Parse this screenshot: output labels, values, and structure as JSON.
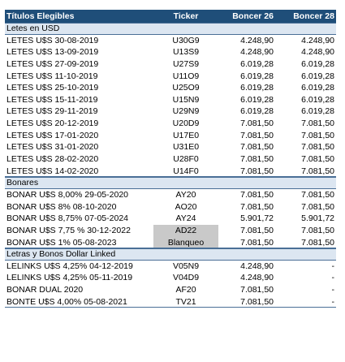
{
  "header": {
    "col1": "Títulos Elegibles",
    "col2": "Ticker",
    "col3": "Boncer 26",
    "col4": "Boncer 28"
  },
  "sections": [
    {
      "title": "Letes en USD",
      "rows": [
        {
          "name": "LETES U$S 30-08-2019",
          "ticker": "U30G9",
          "b26": "4.248,90",
          "b28": "4.248,90",
          "hl": false
        },
        {
          "name": "LETES U$S 13-09-2019",
          "ticker": "U13S9",
          "b26": "4.248,90",
          "b28": "4.248,90",
          "hl": false
        },
        {
          "name": "LETES U$S 27-09-2019",
          "ticker": "U27S9",
          "b26": "6.019,28",
          "b28": "6.019,28",
          "hl": false
        },
        {
          "name": "LETES U$S 11-10-2019",
          "ticker": "U11O9",
          "b26": "6.019,28",
          "b28": "6.019,28",
          "hl": false
        },
        {
          "name": "LETES U$S 25-10-2019",
          "ticker": "U25O9",
          "b26": "6.019,28",
          "b28": "6.019,28",
          "hl": false
        },
        {
          "name": "LETES U$S 15-11-2019",
          "ticker": "U15N9",
          "b26": "6.019,28",
          "b28": "6.019,28",
          "hl": false
        },
        {
          "name": "LETES U$S 29-11-2019",
          "ticker": "U29N9",
          "b26": "6.019,28",
          "b28": "6.019,28",
          "hl": false
        },
        {
          "name": "LETES U$S 20-12-2019",
          "ticker": "U20D9",
          "b26": "7.081,50",
          "b28": "7.081,50",
          "hl": false
        },
        {
          "name": "LETES U$S 17-01-2020",
          "ticker": "U17E0",
          "b26": "7.081,50",
          "b28": "7.081,50",
          "hl": false
        },
        {
          "name": "LETES U$S 31-01-2020",
          "ticker": "U31E0",
          "b26": "7.081,50",
          "b28": "7.081,50",
          "hl": false
        },
        {
          "name": "LETES U$S 28-02-2020",
          "ticker": "U28F0",
          "b26": "7.081,50",
          "b28": "7.081,50",
          "hl": false
        },
        {
          "name": "LETES U$S 14-02-2020",
          "ticker": "U14F0",
          "b26": "7.081,50",
          "b28": "7.081,50",
          "hl": false
        }
      ]
    },
    {
      "title": "Bonares",
      "rows": [
        {
          "name": "BONAR U$S 8,00% 29-05-2020",
          "ticker": "AY20",
          "b26": "7.081,50",
          "b28": "7.081,50",
          "hl": false
        },
        {
          "name": "BONAR U$S 8% 08-10-2020",
          "ticker": "AO20",
          "b26": "7.081,50",
          "b28": "7.081,50",
          "hl": false
        },
        {
          "name": "BONAR U$S 8,75% 07-05-2024",
          "ticker": "AY24",
          "b26": "5.901,72",
          "b28": "5.901,72",
          "hl": false
        },
        {
          "name": "BONAR U$S 7,75 % 30-12-2022",
          "ticker": "AD22",
          "b26": "7.081,50",
          "b28": "7.081,50",
          "hl": true
        },
        {
          "name": "BONAR U$S 1% 05-08-2023",
          "ticker": "Blanqueo",
          "b26": "7.081,50",
          "b28": "7.081,50",
          "hl": true
        }
      ]
    },
    {
      "title": "Letras y Bonos Dollar Linked",
      "rows": [
        {
          "name": "LELINKS U$S 4,25% 04-12-2019",
          "ticker": "V05N9",
          "b26": "4.248,90",
          "b28": "-",
          "hl": false
        },
        {
          "name": "LELINKS U$S 4,25% 05-11-2019",
          "ticker": "V04D9",
          "b26": "4.248,90",
          "b28": "-",
          "hl": false
        },
        {
          "name": "BONAR DUAL 2020",
          "ticker": "AF20",
          "b26": "7.081,50",
          "b28": "-",
          "hl": false
        },
        {
          "name": "BONTE U$S 4,00% 05-08-2021",
          "ticker": "TV21",
          "b26": "7.081,50",
          "b28": "-",
          "hl": false
        }
      ]
    }
  ],
  "colors": {
    "header_bg": "#1f4e79",
    "section_bg": "#dce6f1",
    "highlight_bg": "#c9c9c9"
  }
}
